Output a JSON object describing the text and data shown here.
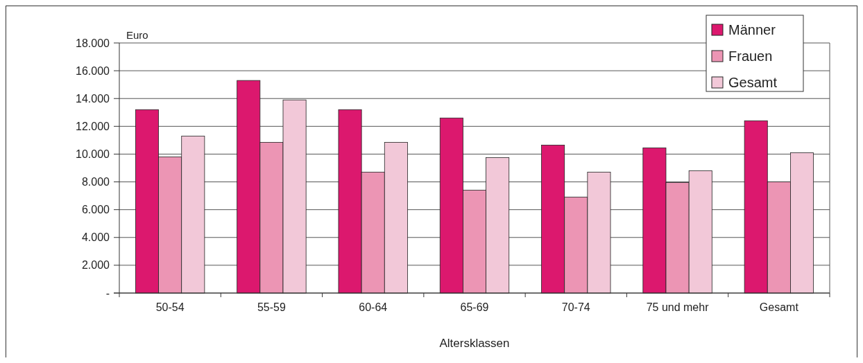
{
  "chart_data": {
    "type": "bar",
    "ylabel": "Euro",
    "xlabel": "Altersklassen",
    "categories": [
      "50-54",
      "55-59",
      "60-64",
      "65-69",
      "70-74",
      "75 und mehr",
      "Gesamt"
    ],
    "series": [
      {
        "name": "Männer",
        "color": "#dc186e",
        "values": [
          13200,
          15300,
          13200,
          12600,
          10650,
          10450,
          12400
        ]
      },
      {
        "name": "Frauen",
        "color": "#ec95b4",
        "values": [
          9800,
          10850,
          8700,
          7400,
          6900,
          7950,
          8000
        ]
      },
      {
        "name": "Gesamt",
        "color": "#f2c8d8",
        "values": [
          11300,
          13900,
          10850,
          9750,
          8700,
          8800,
          10100
        ]
      }
    ],
    "ylim": [
      0,
      18000
    ],
    "yticks": [
      {
        "value": 0,
        "label": "-"
      },
      {
        "value": 2000,
        "label": "2.000"
      },
      {
        "value": 4000,
        "label": "4.000"
      },
      {
        "value": 6000,
        "label": "6.000"
      },
      {
        "value": 8000,
        "label": "8.000"
      },
      {
        "value": 10000,
        "label": "10.000"
      },
      {
        "value": 12000,
        "label": "12.000"
      },
      {
        "value": 14000,
        "label": "14.000"
      },
      {
        "value": 16000,
        "label": "16.000"
      },
      {
        "value": 18000,
        "label": "18.000"
      }
    ],
    "grid": "y",
    "legend": "top right"
  }
}
